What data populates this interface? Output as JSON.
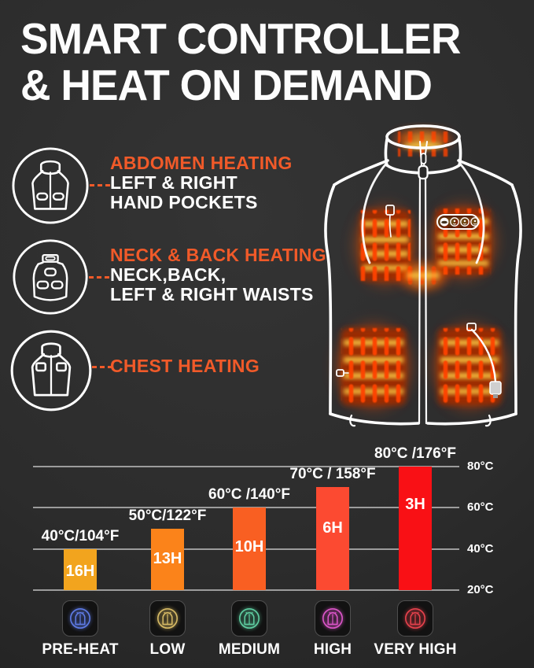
{
  "title": {
    "line1": "SMART CONTROLLER",
    "line2": "& HEAT ON DEMAND"
  },
  "features": [
    {
      "title": "ABDOMEN HEATING",
      "lines": [
        "LEFT & RIGHT",
        "HAND POCKETS"
      ]
    },
    {
      "title": "NECK & BACK HEATING",
      "lines": [
        "NECK,BACK,",
        "LEFT & RIGHT WAISTS"
      ]
    },
    {
      "title": "CHEST HEATING",
      "lines": []
    }
  ],
  "colors": {
    "accent_orange": "#F15A29",
    "background": "#2C2C2C",
    "text_white": "#FFFFFF",
    "gridline": "#9C9C9C",
    "heat_glow": "#FF6A00"
  },
  "chart_data": {
    "type": "bar",
    "categories": [
      "PRE-HEAT",
      "LOW",
      "MEDIUM",
      "HIGH",
      "VERY HIGH"
    ],
    "series": [
      {
        "name": "temperature_celsius",
        "values": [
          40,
          50,
          60,
          70,
          80
        ]
      },
      {
        "name": "runtime_hours",
        "values": [
          16,
          13,
          10,
          6,
          3
        ]
      }
    ],
    "bar_top_labels": [
      "40°C/104°F",
      "50°C/122°F",
      "60°C /140°F",
      "70°C / 158°F",
      "80°C /176°F"
    ],
    "bar_value_labels": [
      "16H",
      "13H",
      "10H",
      "6H",
      "3H"
    ],
    "bar_colors": [
      "#F2A41E",
      "#FB831A",
      "#F95F22",
      "#FC4A31",
      "#F91015"
    ],
    "y_axis_ticks": [
      "80°C",
      "60°C",
      "40°C",
      "20°C"
    ],
    "y_axis_tick_values": [
      80,
      60,
      40,
      20
    ],
    "ylim": [
      20,
      80
    ],
    "grid": true,
    "legend": false,
    "axis_side": "right",
    "title": ""
  },
  "levels": [
    {
      "label": "PRE-HEAT",
      "color": "#5F7CE8"
    },
    {
      "label": "LOW",
      "color": "#D9BC66"
    },
    {
      "label": "MEDIUM",
      "color": "#5FCFA2"
    },
    {
      "label": "HIGH",
      "color": "#DE56CB"
    },
    {
      "label": "VERY HIGH",
      "color": "#E8424D"
    }
  ]
}
